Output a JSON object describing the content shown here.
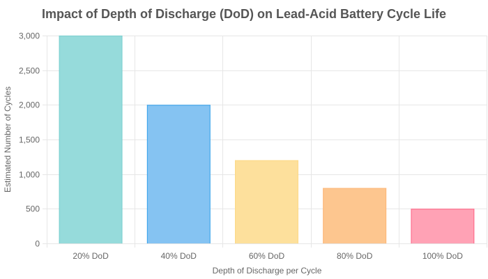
{
  "chart_data": {
    "type": "bar",
    "title": "Impact of Depth of Discharge (DoD) on Lead-Acid Battery Cycle Life",
    "xlabel": "Depth of Discharge per Cycle",
    "ylabel": "Estimated Number of Cycles",
    "categories": [
      "20% DoD",
      "40% DoD",
      "60% DoD",
      "80% DoD",
      "100% DoD"
    ],
    "values": [
      3000,
      2000,
      1200,
      800,
      500
    ],
    "ylim": [
      0,
      3000
    ],
    "yticks": [
      0,
      500,
      1000,
      1500,
      2000,
      2500,
      3000
    ],
    "ytick_labels": [
      "0",
      "500",
      "1,000",
      "1,500",
      "2,000",
      "2,500",
      "3,000"
    ],
    "grid": true,
    "legend": "none",
    "bar_fill_colors": [
      "#96dbdb",
      "#85c3f2",
      "#fde09c",
      "#fdc68f",
      "#ffa2b5"
    ],
    "bar_edge_colors": [
      "#79cfcf",
      "#36a2eb",
      "#fcd886",
      "#fdb575",
      "#ff6384"
    ]
  }
}
